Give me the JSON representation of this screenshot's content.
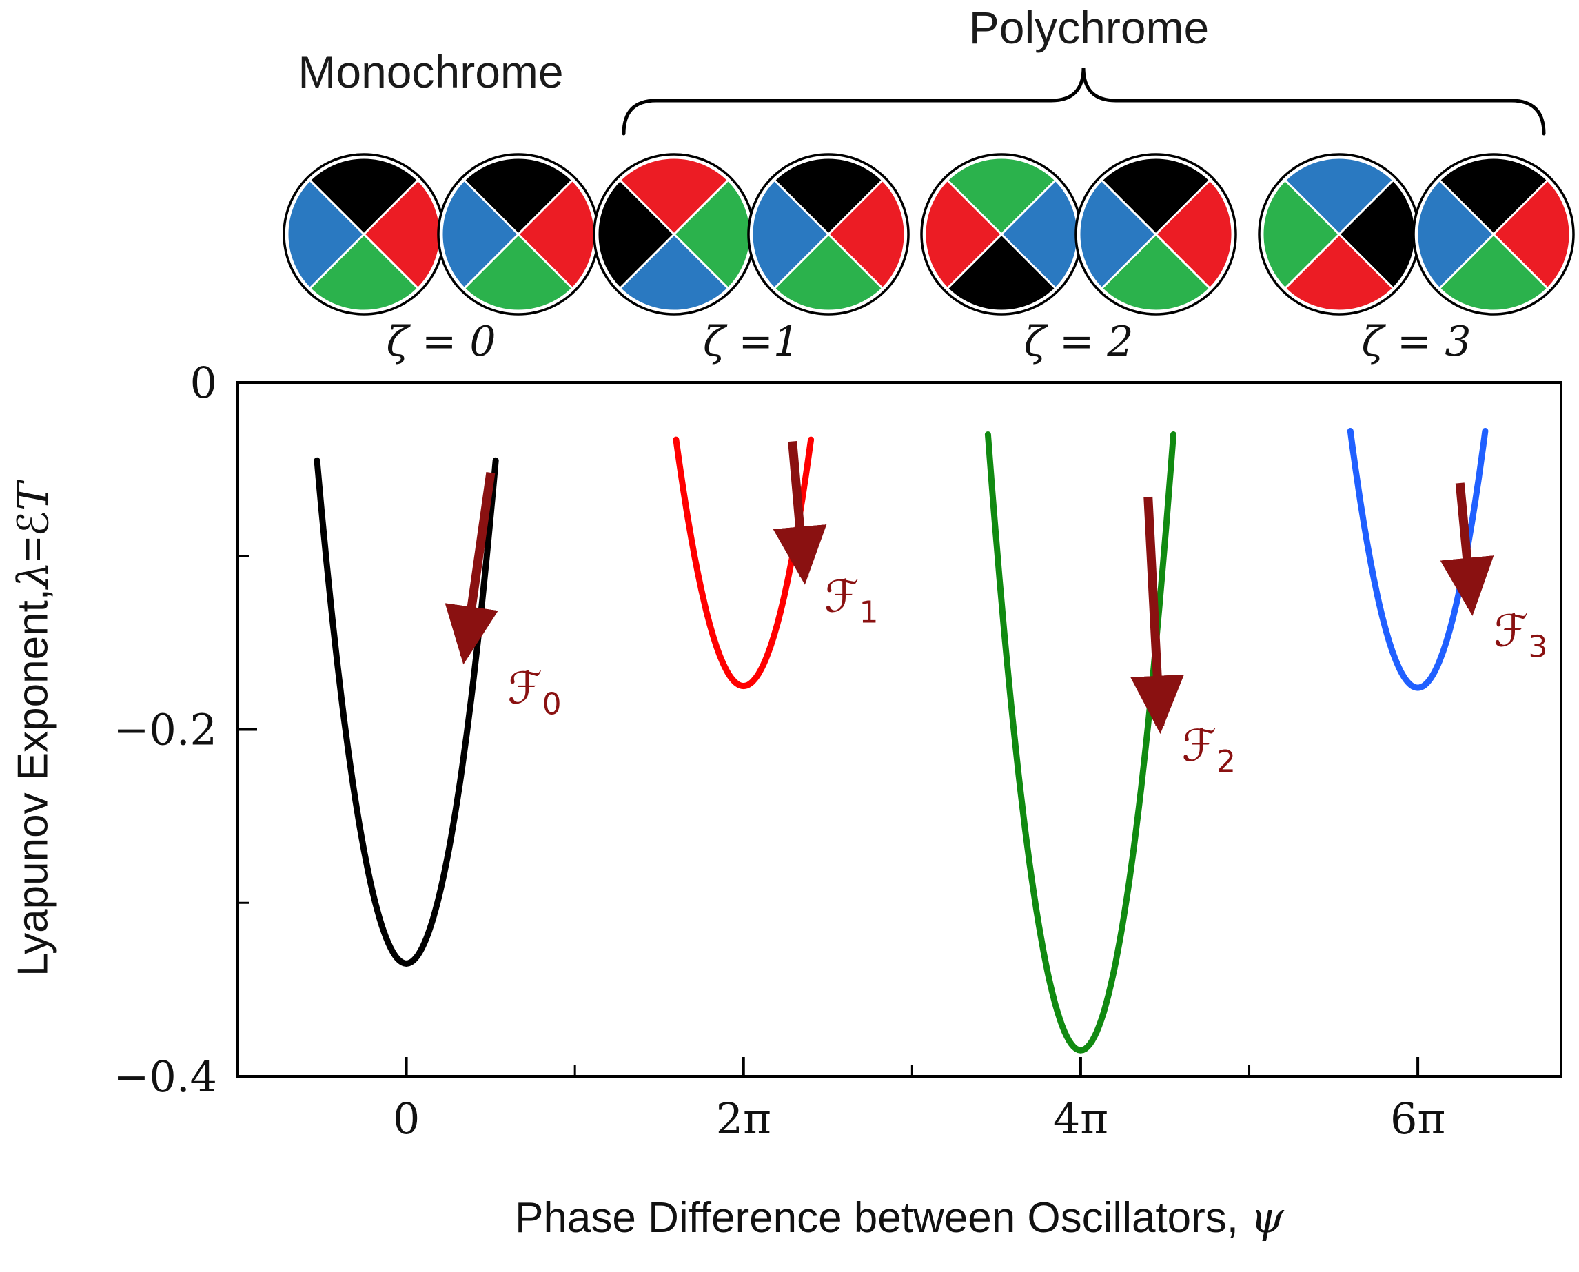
{
  "header": {
    "monochrome_label": "Monochrome",
    "polychrome_label": "Polychrome",
    "wedge_colors": {
      "black": "#000000",
      "red": "#ec1c24",
      "green": "#2bb24c",
      "blue": "#2a79c1"
    },
    "wedge_order": [
      "top",
      "right",
      "bottom",
      "left"
    ],
    "pairs": [
      {
        "zeta_label": "ζ = 0",
        "left": [
          "black",
          "red",
          "green",
          "blue"
        ],
        "right": [
          "black",
          "red",
          "green",
          "blue"
        ]
      },
      {
        "zeta_label": "ζ =1",
        "left": [
          "red",
          "green",
          "blue",
          "black"
        ],
        "right": [
          "black",
          "red",
          "green",
          "blue"
        ]
      },
      {
        "zeta_label": "ζ = 2",
        "left": [
          "green",
          "blue",
          "black",
          "red"
        ],
        "right": [
          "black",
          "red",
          "green",
          "blue"
        ]
      },
      {
        "zeta_label": "ζ = 3",
        "left": [
          "blue",
          "black",
          "red",
          "green"
        ],
        "right": [
          "black",
          "red",
          "green",
          "blue"
        ]
      }
    ]
  },
  "chart_data": {
    "type": "line",
    "title": "",
    "xlabel": "Phase Difference between Oscillators, ψ",
    "xlabel_text": "Phase Difference between Oscillators, ",
    "xlabel_symbol": "ψ",
    "ylabel": "Lyapunov Exponent, λ = ℰ𝒯",
    "ylabel_text": "Lyapunov Exponent, ",
    "ylabel_lambda": "λ",
    "ylabel_eq": " = ",
    "ylabel_script_e": "ℰ",
    "ylabel_script_t": "T",
    "x_unit": "multiples of π",
    "xlim_pi": [
      -1.0,
      6.85
    ],
    "ylim": [
      -0.4,
      0
    ],
    "grid": false,
    "legend": false,
    "xticks": [
      {
        "pi": 0,
        "label": "0"
      },
      {
        "pi": 2,
        "label": "2π"
      },
      {
        "pi": 4,
        "label": "4π"
      },
      {
        "pi": 6,
        "label": "6π"
      }
    ],
    "xticks_minor_pi": [
      1,
      3,
      5
    ],
    "yticks": [
      {
        "v": 0,
        "label": "0"
      },
      {
        "v": -0.2,
        "label": "−0.2"
      },
      {
        "v": -0.4,
        "label": "−0.4"
      }
    ],
    "yticks_minor": [
      -0.1,
      -0.3
    ],
    "series": [
      {
        "name": "ζ = 0",
        "color": "#000000",
        "shape": "parabola",
        "center_pi": 0,
        "min_lambda": -0.335,
        "half_width_pi": 0.53,
        "top_lambda": -0.045
      },
      {
        "name": "ζ = 1",
        "color": "#ff0000",
        "shape": "parabola",
        "center_pi": 2,
        "min_lambda": -0.175,
        "half_width_pi": 0.4,
        "top_lambda": -0.033
      },
      {
        "name": "ζ = 2",
        "color": "#118a11",
        "shape": "parabola",
        "center_pi": 4,
        "min_lambda": -0.385,
        "half_width_pi": 0.55,
        "top_lambda": -0.03
      },
      {
        "name": "ζ = 3",
        "color": "#2060ff",
        "shape": "parabola",
        "center_pi": 6,
        "min_lambda": -0.176,
        "half_width_pi": 0.4,
        "top_lambda": -0.028
      }
    ],
    "arrow_color": "#8a1111",
    "annotations": [
      {
        "base": "ℱ",
        "sub": "0",
        "tail_pi": 0.5,
        "tail_lambda": -0.052,
        "head_pi": 0.345,
        "head_lambda": -0.158,
        "label_pi": 0.6,
        "label_lambda": -0.185
      },
      {
        "base": "ℱ",
        "sub": "1",
        "tail_pi": 2.29,
        "tail_lambda": -0.034,
        "head_pi": 2.36,
        "head_lambda": -0.112,
        "label_pi": 2.48,
        "label_lambda": -0.132
      },
      {
        "base": "ℱ",
        "sub": "2",
        "tail_pi": 4.4,
        "tail_lambda": -0.066,
        "head_pi": 4.47,
        "head_lambda": -0.198,
        "label_pi": 4.6,
        "label_lambda": -0.218
      },
      {
        "base": "ℱ",
        "sub": "3",
        "tail_pi": 6.25,
        "tail_lambda": -0.058,
        "head_pi": 6.32,
        "head_lambda": -0.13,
        "label_pi": 6.45,
        "label_lambda": -0.152
      }
    ]
  }
}
